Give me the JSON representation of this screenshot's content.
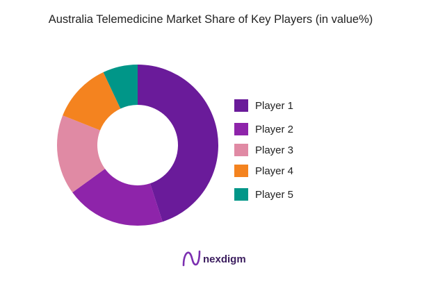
{
  "chart_data": {
    "type": "pie",
    "title": "Australia Telemedicine Market Share of Key Players (in value%)",
    "categories": [
      "Player 1",
      "Player 2",
      "Player 3",
      "Player 4",
      "Player 5"
    ],
    "values": [
      45,
      20,
      16,
      12,
      7
    ],
    "colors": [
      "#6a1b9a",
      "#8e24aa",
      "#e08aa4",
      "#f4831f",
      "#009688"
    ],
    "donut": true,
    "legend_position": "right"
  },
  "brand": {
    "name": "nexdigm",
    "logo_color": "#7b2fb0"
  }
}
